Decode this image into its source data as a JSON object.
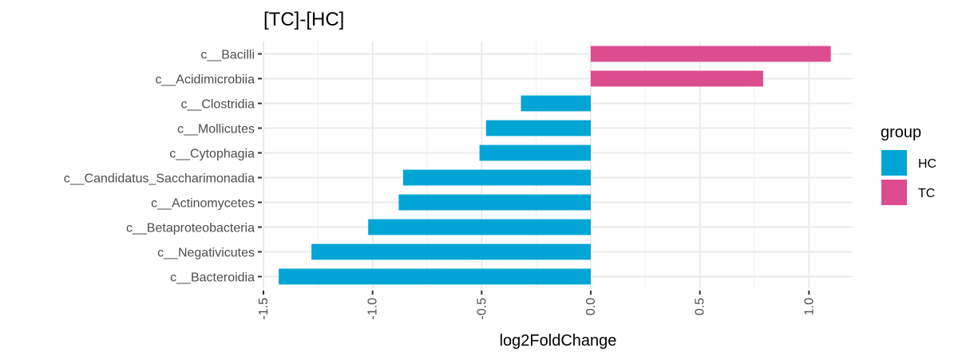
{
  "chart_data": {
    "type": "bar",
    "orientation": "horizontal",
    "title": "[TC]-[HC]",
    "xlabel": "log2FoldChange",
    "ylabel": "",
    "xlim": [
      -1.5,
      1.2
    ],
    "x_ticks": [
      -1.5,
      -1.0,
      -0.5,
      0.0,
      0.5,
      1.0
    ],
    "x_tick_labels": [
      "-1.5",
      "-1.0",
      "-0.5",
      "0.0",
      "0.5",
      "1.0"
    ],
    "grid": true,
    "legend": {
      "title": "group",
      "placement": "right",
      "entries": [
        {
          "label": "HC",
          "color": "#00A5D6"
        },
        {
          "label": "TC",
          "color": "#DD4C8F"
        }
      ]
    },
    "categories": [
      "c__Bacilli",
      "c__Acidimicrobiia",
      "c__Clostridia",
      "c__Mollicutes",
      "c__Cytophagia",
      "c__Candidatus_Saccharimonadia",
      "c__Actinomycetes",
      "c__Betaproteobacteria",
      "c__Negativicutes",
      "c__Bacteroidia"
    ],
    "values": [
      1.1,
      0.79,
      -0.32,
      -0.48,
      -0.51,
      -0.86,
      -0.88,
      -1.02,
      -1.28,
      -1.43
    ],
    "groups": [
      "TC",
      "TC",
      "HC",
      "HC",
      "HC",
      "HC",
      "HC",
      "HC",
      "HC",
      "HC"
    ]
  }
}
